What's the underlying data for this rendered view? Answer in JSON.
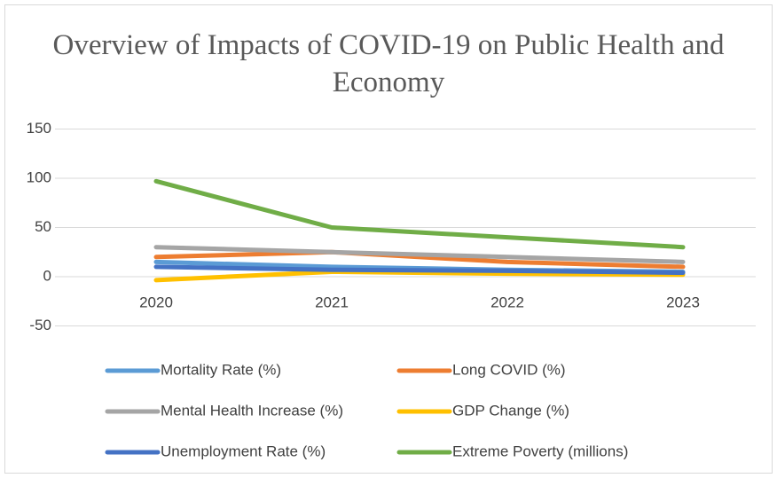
{
  "chart_data": {
    "type": "line",
    "title": "Overview of Impacts of COVID-19 on Public Health and Economy",
    "categories": [
      "2020",
      "2021",
      "2022",
      "2023"
    ],
    "series": [
      {
        "name": "Mortality Rate (%)",
        "color": "#5b9bd5",
        "values": [
          15,
          10,
          7,
          5
        ]
      },
      {
        "name": "Long COVID (%)",
        "color": "#ed7d31",
        "values": [
          20,
          25,
          15,
          10
        ]
      },
      {
        "name": "Mental Health Increase (%)",
        "color": "#a5a5a5",
        "values": [
          30,
          25,
          20,
          15
        ]
      },
      {
        "name": "GDP Change (%)",
        "color": "#ffc000",
        "values": [
          -3.5,
          5,
          3,
          2
        ]
      },
      {
        "name": "Unemployment Rate (%)",
        "color": "#4472c4",
        "values": [
          10,
          7,
          6,
          4
        ]
      },
      {
        "name": "Extreme Poverty (millions)",
        "color": "#70ad47",
        "values": [
          97,
          50,
          40,
          30
        ]
      }
    ],
    "ylim": [
      -50,
      150
    ],
    "yticks": [
      -50,
      0,
      50,
      100,
      150
    ],
    "grid": true,
    "legend": "bottom"
  }
}
